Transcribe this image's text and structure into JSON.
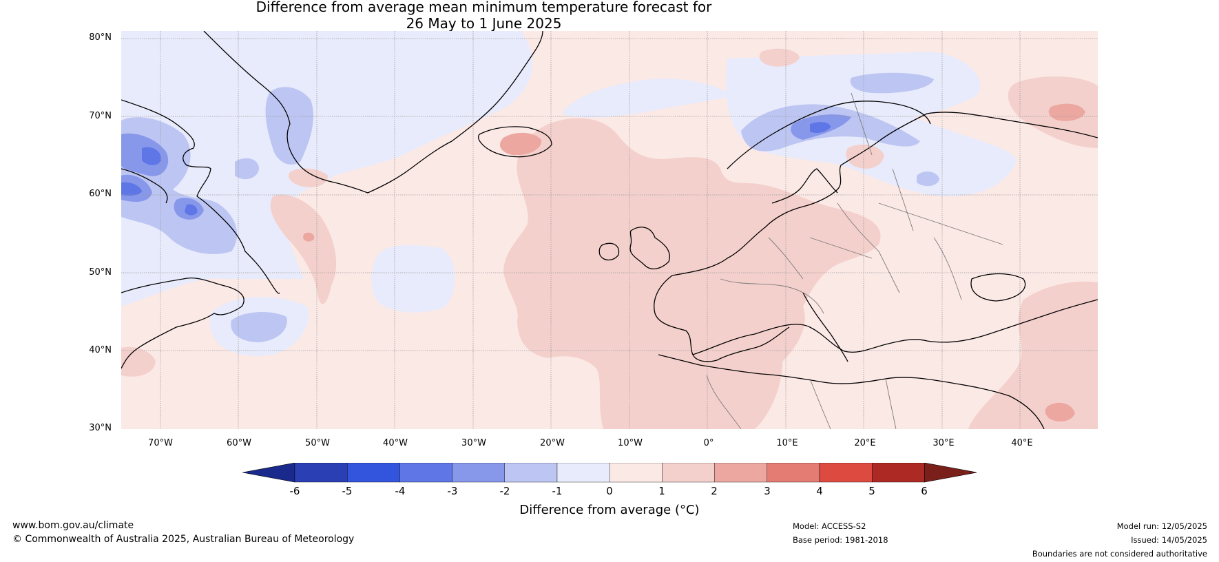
{
  "title": {
    "line1": "Difference from average mean minimum temperature forecast for",
    "line2": "26 May to 1 June 2025"
  },
  "map": {
    "region": "North Atlantic and Europe",
    "lat_range_deg": [
      30,
      80
    ],
    "lon_range_deg": [
      -75,
      50
    ],
    "lat_labels": [
      "80°N",
      "70°N",
      "60°N",
      "50°N",
      "40°N",
      "30°N"
    ],
    "lon_labels": [
      "70°W",
      "60°W",
      "50°W",
      "40°W",
      "30°W",
      "20°W",
      "10°W",
      "0°",
      "10°E",
      "20°E",
      "30°E",
      "40°E"
    ],
    "gridlines": true
  },
  "colorbar": {
    "label": "Difference from average (°C)",
    "ticks": [
      "-6",
      "-5",
      "-4",
      "-3",
      "-2",
      "-1",
      "0",
      "1",
      "2",
      "3",
      "4",
      "5",
      "6"
    ],
    "colors": {
      "below_-6": "#1a2a8c",
      "-6_-5": "#2b3fb4",
      "-5_-4": "#3355dd",
      "-4_-3": "#5e76e6",
      "-3_-2": "#8797ea",
      "-2_-1": "#bdc6f3",
      "-1_0": "#e8ebfb",
      "0_1": "#fbe9e6",
      "1_2": "#f4d0cc",
      "2_3": "#eca7a1",
      "3_4": "#e47c74",
      "4_5": "#dc4a40",
      "5_6": "#ac2a23",
      "above_6": "#7a1f1a"
    }
  },
  "footer": {
    "website": "www.bom.gov.au/climate",
    "copyright": "© Commonwealth of Australia 2025, Australian Bureau of Meteorology",
    "model": "Model: ACCESS-S2",
    "base_period": "Base period: 1981-2018",
    "model_run": "Model run: 12/05/2025",
    "issued": "Issued: 14/05/2025",
    "disclaimer": "Boundaries are not considered authoritative"
  }
}
